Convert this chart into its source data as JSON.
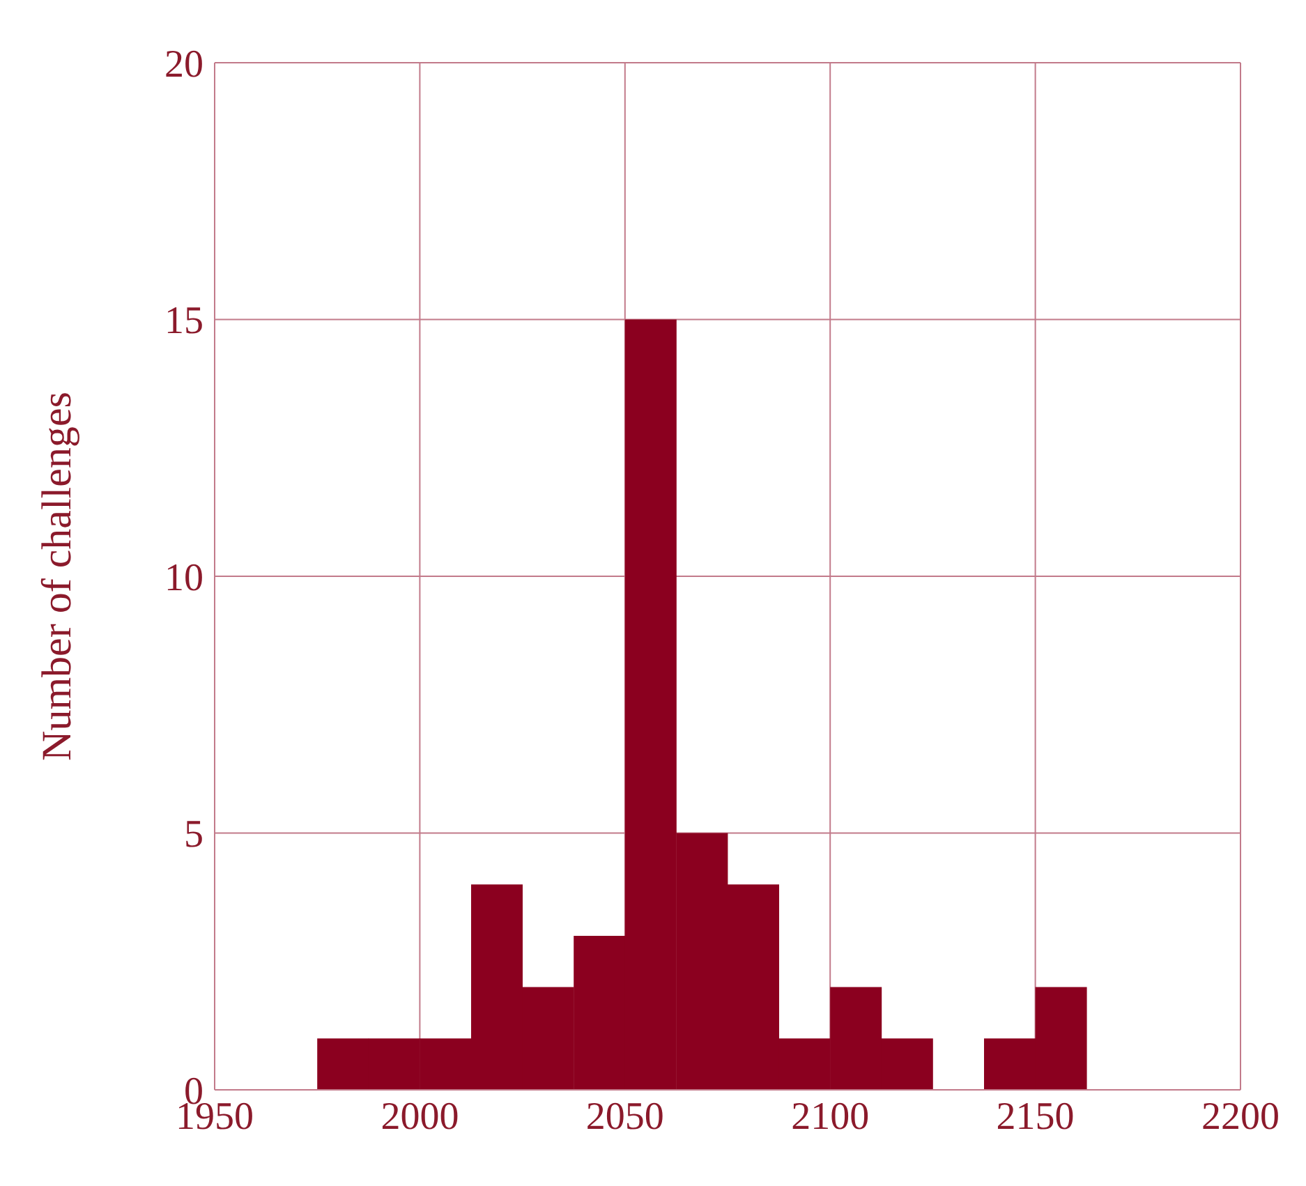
{
  "chart_data": {
    "type": "histogram",
    "ylabel": "Number of challenges",
    "bins": [
      1975,
      1987.5,
      2000,
      2012.5,
      2025,
      2037.5,
      2050,
      2062.5,
      2075,
      2087.5,
      2100,
      2112.5,
      2125,
      2137.5,
      2150,
      2162.5
    ],
    "values": [
      1,
      1,
      1,
      4,
      2,
      3,
      15,
      5,
      4,
      1,
      2,
      1,
      0,
      1,
      2
    ],
    "color": "#8b001f",
    "xlim": [
      1950,
      2200
    ],
    "xticks": [
      1950,
      2000,
      2050,
      2100,
      2150,
      2200
    ],
    "ylim": [
      0,
      20
    ],
    "yticks": [
      0,
      5,
      10,
      15,
      20
    ],
    "grid": true
  }
}
